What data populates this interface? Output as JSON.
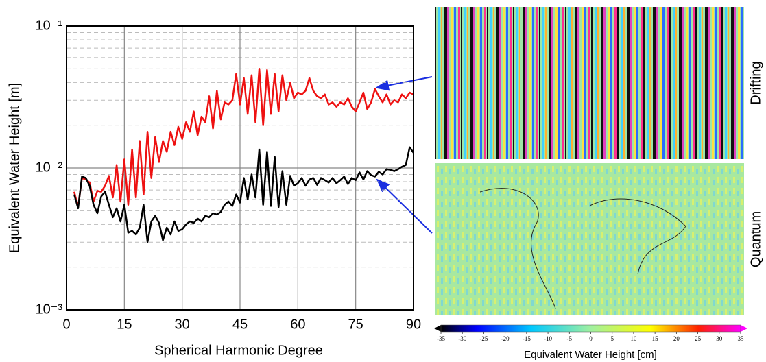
{
  "chart_data": {
    "type": "line",
    "x_label": "Spherical Harmonic Degree",
    "y_label": "Equivalent Water Height [m]",
    "xlim": [
      0,
      90
    ],
    "xticks": [
      0,
      15,
      30,
      45,
      60,
      75,
      90
    ],
    "ylim": [
      0.001,
      0.1
    ],
    "log_y": true,
    "grid": true,
    "minor_grid": true,
    "yticks": [
      {
        "value": 0.001,
        "label": "10⁻³"
      },
      {
        "value": 0.01,
        "label": "10⁻²"
      },
      {
        "value": 0.1,
        "label": "10⁻¹"
      }
    ],
    "x": [
      2,
      3,
      4,
      5,
      6,
      7,
      8,
      9,
      10,
      11,
      12,
      13,
      14,
      15,
      16,
      17,
      18,
      19,
      20,
      21,
      22,
      23,
      24,
      25,
      26,
      27,
      28,
      29,
      30,
      31,
      32,
      33,
      34,
      35,
      36,
      37,
      38,
      39,
      40,
      41,
      42,
      43,
      44,
      45,
      46,
      47,
      48,
      49,
      50,
      51,
      52,
      53,
      54,
      55,
      56,
      57,
      58,
      59,
      60,
      61,
      62,
      63,
      64,
      65,
      66,
      67,
      68,
      69,
      70,
      71,
      72,
      73,
      74,
      75,
      76,
      77,
      78,
      79,
      80,
      81,
      82,
      83,
      84,
      85,
      86,
      87,
      88,
      89,
      90
    ],
    "series": [
      {
        "color": "#ee1111",
        "values": [
          0.0068,
          0.0053,
          0.0085,
          0.0083,
          0.0079,
          0.0058,
          0.0069,
          0.0068,
          0.0075,
          0.0088,
          0.0062,
          0.0105,
          0.0058,
          0.0115,
          0.0055,
          0.0135,
          0.0062,
          0.0155,
          0.0065,
          0.018,
          0.0085,
          0.0165,
          0.011,
          0.0155,
          0.013,
          0.018,
          0.0145,
          0.0195,
          0.016,
          0.021,
          0.018,
          0.025,
          0.017,
          0.023,
          0.021,
          0.032,
          0.019,
          0.035,
          0.022,
          0.029,
          0.028,
          0.03,
          0.046,
          0.028,
          0.043,
          0.024,
          0.045,
          0.021,
          0.05,
          0.02,
          0.049,
          0.024,
          0.046,
          0.025,
          0.045,
          0.03,
          0.04,
          0.031,
          0.034,
          0.033,
          0.035,
          0.043,
          0.035,
          0.032,
          0.031,
          0.033,
          0.028,
          0.029,
          0.027,
          0.029,
          0.028,
          0.031,
          0.027,
          0.025,
          0.029,
          0.034,
          0.026,
          0.029,
          0.036,
          0.032,
          0.029,
          0.033,
          0.028,
          0.03,
          0.029,
          0.033,
          0.031,
          0.034,
          0.033
        ]
      },
      {
        "color": "#000000",
        "values": [
          0.0065,
          0.0052,
          0.0087,
          0.0085,
          0.0075,
          0.0055,
          0.0048,
          0.0063,
          0.0068,
          0.0055,
          0.0045,
          0.0052,
          0.0042,
          0.0055,
          0.0035,
          0.0036,
          0.0034,
          0.0038,
          0.0055,
          0.003,
          0.0042,
          0.0046,
          0.0041,
          0.0031,
          0.0038,
          0.0034,
          0.0042,
          0.0036,
          0.0037,
          0.004,
          0.0042,
          0.0041,
          0.0044,
          0.0042,
          0.0046,
          0.0045,
          0.0048,
          0.0047,
          0.0049,
          0.0055,
          0.0058,
          0.0054,
          0.0065,
          0.0057,
          0.0085,
          0.006,
          0.009,
          0.0062,
          0.0135,
          0.0055,
          0.013,
          0.0054,
          0.012,
          0.0053,
          0.0095,
          0.0055,
          0.0088,
          0.0075,
          0.0078,
          0.0085,
          0.0075,
          0.0083,
          0.0085,
          0.0076,
          0.0085,
          0.0082,
          0.0079,
          0.0085,
          0.0078,
          0.0082,
          0.0087,
          0.0077,
          0.0085,
          0.0082,
          0.0093,
          0.0083,
          0.0095,
          0.0089,
          0.0087,
          0.0094,
          0.009,
          0.0098,
          0.0097,
          0.0095,
          0.0098,
          0.0102,
          0.0105,
          0.014,
          0.0128
        ]
      }
    ]
  },
  "maps": [
    {
      "label": "Drifting"
    },
    {
      "label": "Quantum"
    }
  ],
  "colorbar": {
    "lim": [
      -35,
      35
    ],
    "ticks": [
      -35,
      -30,
      -25,
      -20,
      -15,
      -10,
      -5,
      0,
      5,
      10,
      15,
      20,
      25,
      30,
      35
    ],
    "label": "Equivalent Water Height [cm]"
  }
}
